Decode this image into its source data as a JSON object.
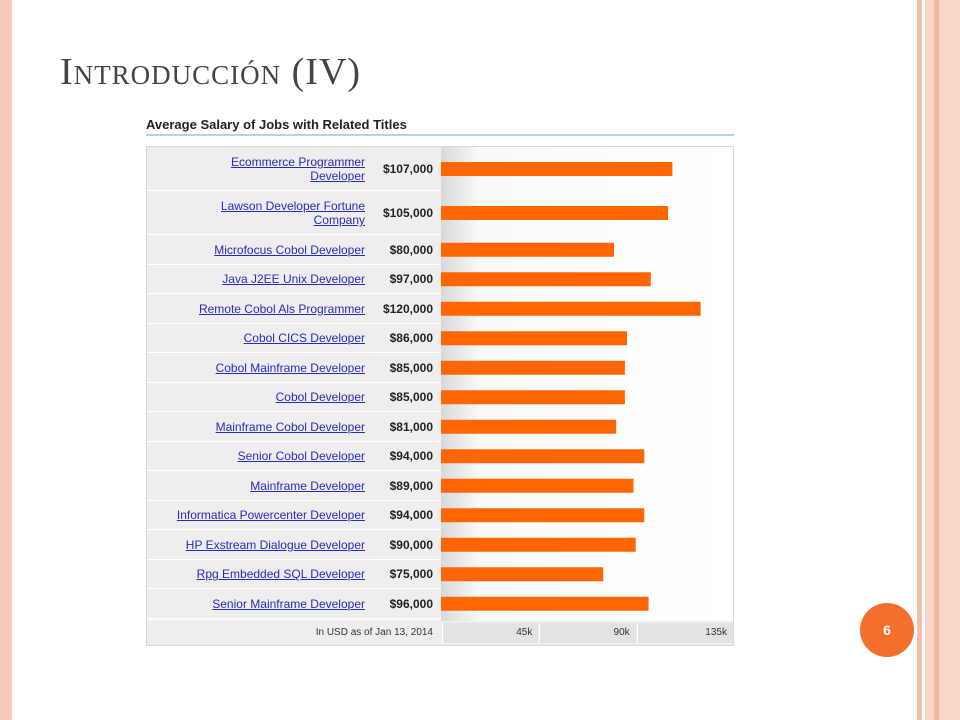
{
  "slide": {
    "title": "Introducción (IV)",
    "page_number": "6"
  },
  "chart_data": {
    "type": "bar",
    "orientation": "horizontal",
    "title": "Average Salary of Jobs with Related Titles",
    "categories": [
      "Ecommerce Programmer Developer",
      "Lawson Developer Fortune Company",
      "Microfocus Cobol Developer",
      "Java J2EE Unix Developer",
      "Remote Cobol Als Programmer",
      "Cobol CICS Developer",
      "Cobol Mainframe Developer",
      "Cobol Developer",
      "Mainframe Cobol Developer",
      "Senior Cobol Developer",
      "Mainframe Developer",
      "Informatica Powercenter Developer",
      "HP Exstream Dialogue Developer",
      "Rpg Embedded SQL Developer",
      "Senior Mainframe Developer"
    ],
    "values": [
      107000,
      105000,
      80000,
      97000,
      120000,
      86000,
      85000,
      85000,
      81000,
      94000,
      89000,
      94000,
      90000,
      75000,
      96000
    ],
    "value_labels": [
      "$107,000",
      "$105,000",
      "$80,000",
      "$97,000",
      "$120,000",
      "$86,000",
      "$85,000",
      "$85,000",
      "$81,000",
      "$94,000",
      "$89,000",
      "$94,000",
      "$90,000",
      "$75,000",
      "$96,000"
    ],
    "xlim": [
      0,
      135000
    ],
    "x_ticks": [
      45000,
      90000,
      135000
    ],
    "x_tick_labels": [
      "45k",
      "90k",
      "135k"
    ],
    "footnote": "In USD as of Jan 13, 2014",
    "bar_color": "#ff6600"
  }
}
